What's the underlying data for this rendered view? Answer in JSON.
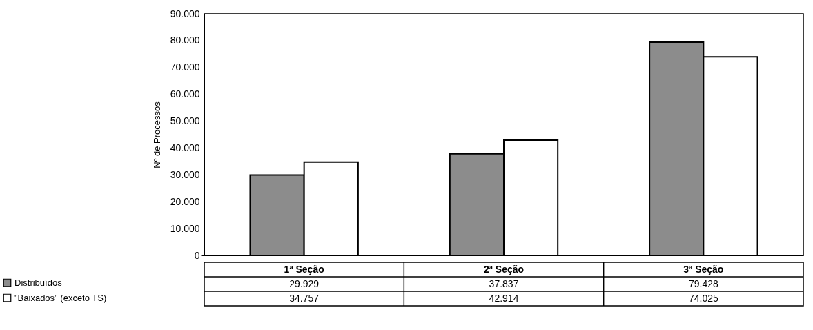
{
  "chart_data": {
    "type": "bar",
    "ylabel": "Nº de Processos",
    "categories": [
      "1ª Seção",
      "2ª Seção",
      "3ª Seção"
    ],
    "series": [
      {
        "name": "Distribuídos",
        "color": "#8c8c8c",
        "values": [
          29929,
          37837,
          79428
        ],
        "value_labels": [
          "29.929",
          "37.837",
          "79.428"
        ]
      },
      {
        "name": "\"Baixados\" (exceto TS)",
        "color": "#ffffff",
        "values": [
          34757,
          42914,
          74025
        ],
        "value_labels": [
          "34.757",
          "42.914",
          "74.025"
        ]
      }
    ],
    "ylim": [
      0,
      90000
    ],
    "yticks": [
      0,
      {
        "value": 10000,
        "label": "10.000"
      },
      {
        "value": 20000,
        "label": "20.000"
      },
      {
        "value": 30000,
        "label": "30.000"
      },
      {
        "value": 40000,
        "label": "40.000"
      },
      {
        "value": 50000,
        "label": "50.000"
      },
      {
        "value": 60000,
        "label": "60.000"
      },
      {
        "value": 70000,
        "label": "70.000"
      },
      {
        "value": 80000,
        "label": "80.000"
      },
      {
        "value": 90000,
        "label": "90.000"
      }
    ],
    "grid": "y",
    "legend": "bottom left"
  }
}
